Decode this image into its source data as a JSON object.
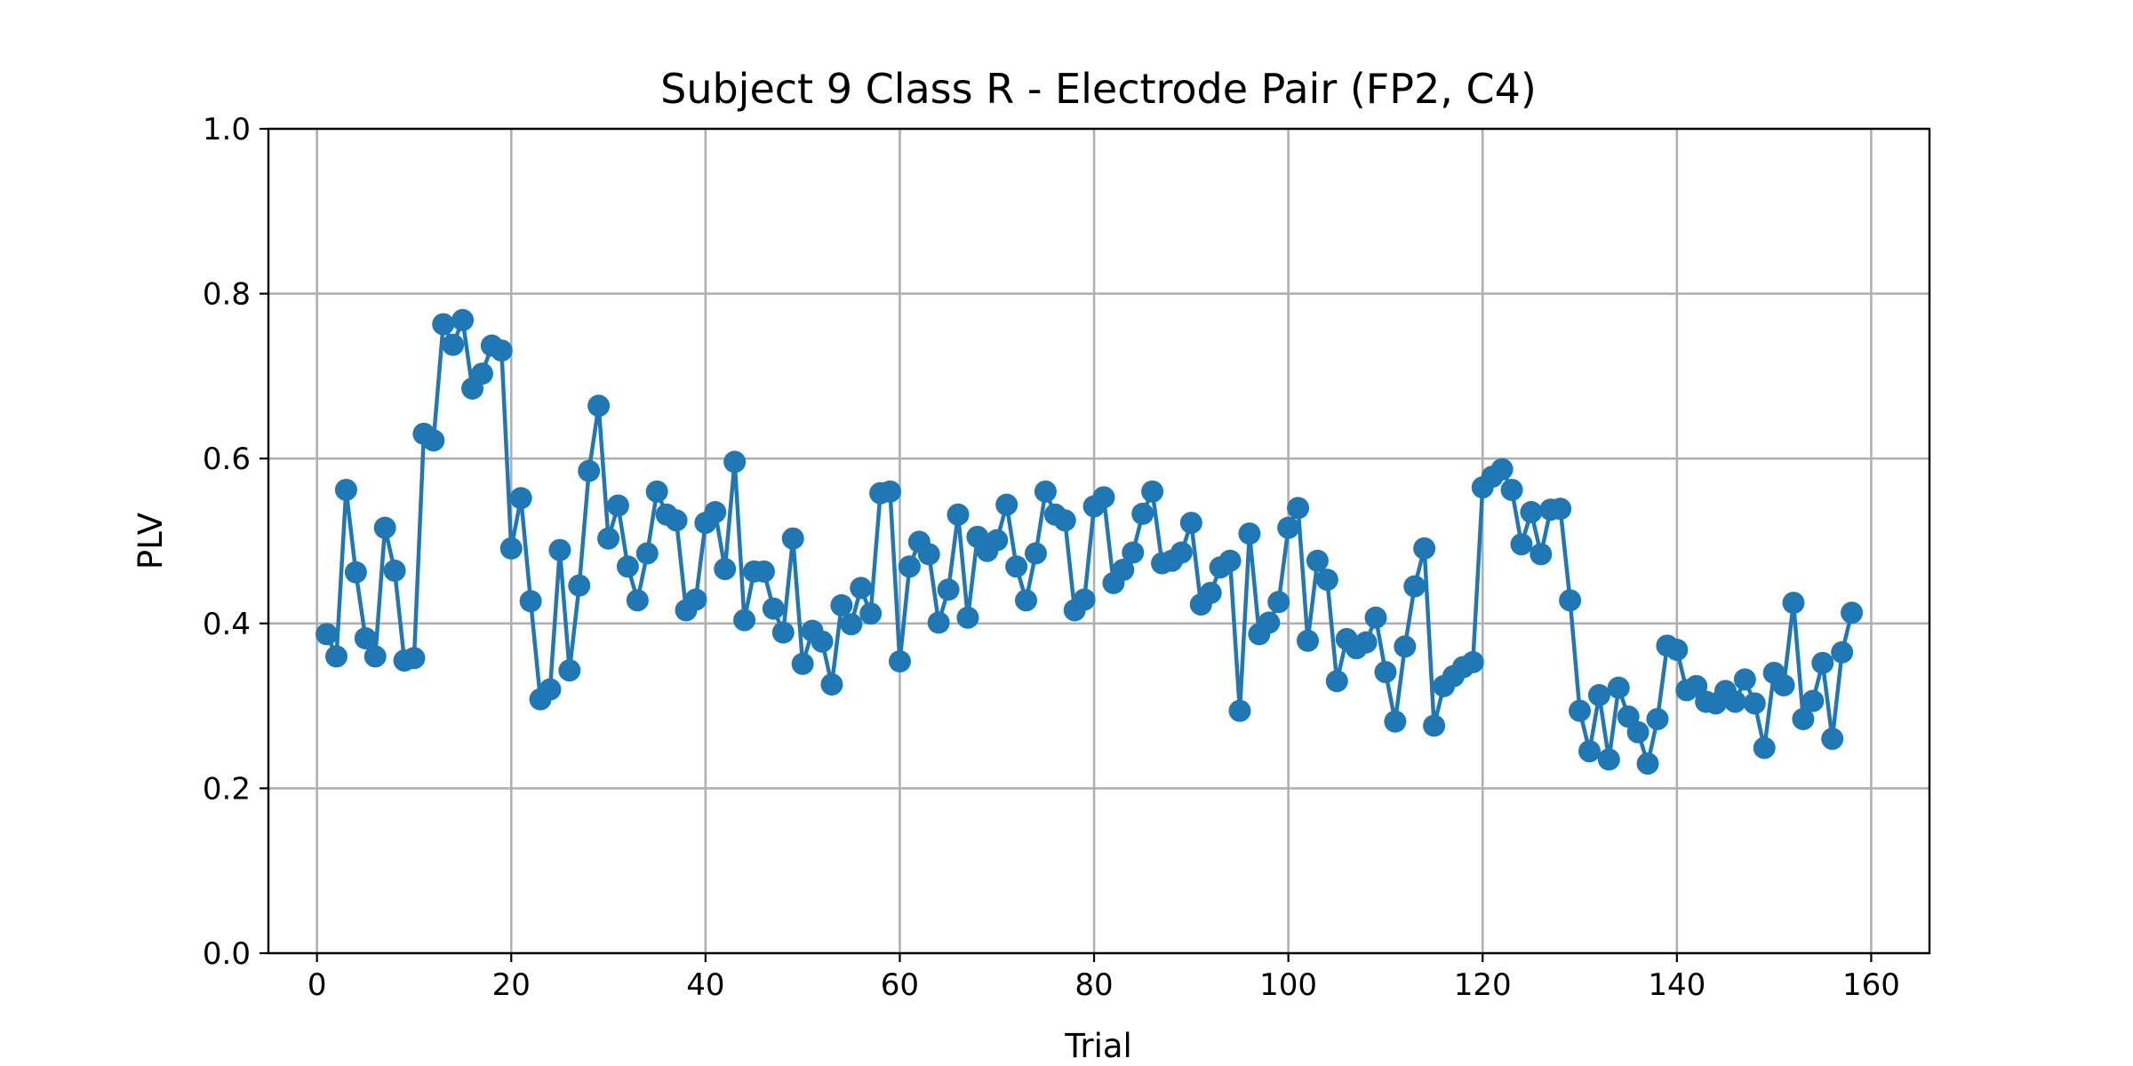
{
  "chart_data": {
    "type": "line",
    "title": "Subject 9 Class R - Electrode Pair (FP2, C4)",
    "xlabel": "Trial",
    "ylabel": "PLV",
    "xlim": [
      -5,
      166
    ],
    "ylim": [
      0.0,
      1.0
    ],
    "xticks": [
      0,
      20,
      40,
      60,
      80,
      100,
      120,
      140,
      160
    ],
    "yticks": [
      0.0,
      0.2,
      0.4,
      0.6,
      0.8,
      1.0
    ],
    "xtick_labels": [
      "0",
      "20",
      "40",
      "60",
      "80",
      "100",
      "120",
      "140",
      "160"
    ],
    "ytick_labels": [
      "0.0",
      "0.2",
      "0.4",
      "0.6",
      "0.8",
      "1.0"
    ],
    "grid": true,
    "marker": "circle",
    "color": "#1f77b4",
    "series": [
      {
        "x": [
          1,
          2,
          3,
          4,
          5,
          6,
          7,
          8,
          9,
          10,
          11,
          12,
          13,
          14,
          15,
          16,
          17,
          18,
          19,
          20,
          21,
          22,
          23,
          24,
          25,
          26,
          27,
          28,
          29,
          30,
          31,
          32,
          33,
          34,
          35,
          36,
          37,
          38,
          39,
          40,
          41,
          42,
          43,
          44,
          45,
          46,
          47,
          48,
          49,
          50,
          51,
          52,
          53,
          54,
          55,
          56,
          57,
          58,
          59,
          60,
          61,
          62,
          63,
          64,
          65,
          66,
          67,
          68,
          69,
          70,
          71,
          72,
          73,
          74,
          75,
          76,
          77,
          78,
          79,
          80,
          81,
          82,
          83,
          84,
          85,
          86,
          87,
          88,
          89,
          90,
          91,
          92,
          93,
          94,
          95,
          96,
          97,
          98,
          99,
          100,
          101,
          102,
          103,
          104,
          105,
          106,
          107,
          108,
          109,
          110,
          111,
          112,
          113,
          114,
          115,
          116,
          117,
          118,
          119,
          120,
          121,
          122,
          123,
          124,
          125,
          126,
          127,
          128,
          129,
          130,
          131,
          132,
          133,
          134,
          135,
          136,
          137,
          138,
          139,
          140,
          141,
          142,
          143,
          144,
          145,
          146,
          147,
          148,
          149,
          150,
          151,
          152,
          153,
          154,
          155,
          156,
          157,
          158
        ],
        "y": [
          0.387,
          0.36,
          0.562,
          0.462,
          0.382,
          0.36,
          0.516,
          0.464,
          0.355,
          0.358,
          0.63,
          0.622,
          0.763,
          0.738,
          0.768,
          0.685,
          0.703,
          0.737,
          0.731,
          0.491,
          0.552,
          0.427,
          0.308,
          0.32,
          0.489,
          0.343,
          0.446,
          0.585,
          0.664,
          0.503,
          0.543,
          0.469,
          0.428,
          0.485,
          0.56,
          0.532,
          0.525,
          0.416,
          0.429,
          0.522,
          0.535,
          0.466,
          0.596,
          0.404,
          0.463,
          0.463,
          0.418,
          0.389,
          0.503,
          0.351,
          0.391,
          0.378,
          0.326,
          0.422,
          0.399,
          0.443,
          0.412,
          0.558,
          0.56,
          0.354,
          0.469,
          0.499,
          0.484,
          0.401,
          0.441,
          0.532,
          0.407,
          0.505,
          0.488,
          0.501,
          0.544,
          0.469,
          0.428,
          0.485,
          0.56,
          0.532,
          0.525,
          0.416,
          0.429,
          0.542,
          0.553,
          0.449,
          0.465,
          0.486,
          0.533,
          0.56,
          0.473,
          0.476,
          0.486,
          0.522,
          0.423,
          0.437,
          0.468,
          0.476,
          0.294,
          0.509,
          0.387,
          0.401,
          0.426,
          0.516,
          0.54,
          0.379,
          0.476,
          0.453,
          0.33,
          0.381,
          0.37,
          0.377,
          0.407,
          0.341,
          0.281,
          0.372,
          0.445,
          0.491,
          0.276,
          0.324,
          0.336,
          0.347,
          0.353,
          0.565,
          0.578,
          0.587,
          0.562,
          0.496,
          0.535,
          0.484,
          0.538,
          0.539,
          0.428,
          0.294,
          0.245,
          0.313,
          0.235,
          0.322,
          0.287,
          0.268,
          0.23,
          0.284,
          0.373,
          0.368,
          0.319,
          0.324,
          0.305,
          0.303,
          0.318,
          0.305,
          0.332,
          0.303,
          0.249,
          0.34,
          0.325,
          0.425,
          0.284,
          0.306,
          0.352,
          0.26,
          0.365,
          0.413
        ]
      }
    ]
  }
}
